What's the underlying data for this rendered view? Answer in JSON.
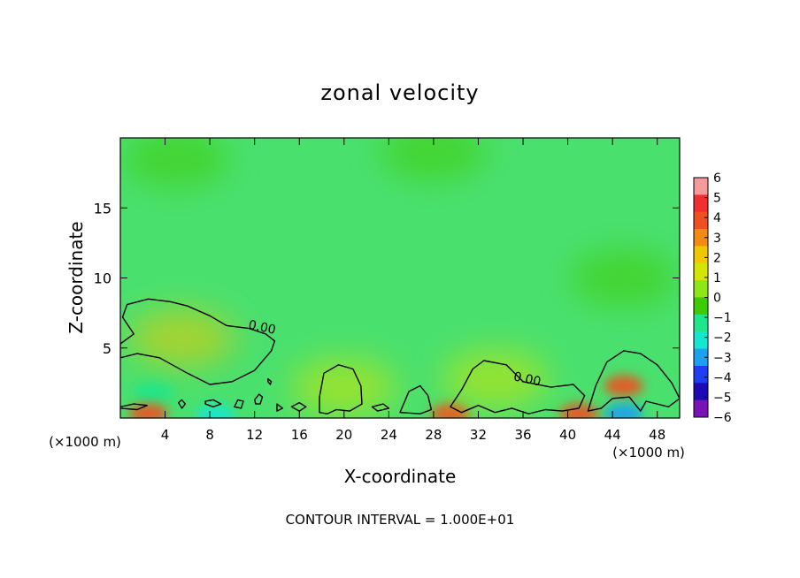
{
  "chart_data": {
    "type": "heatmap",
    "title": "zonal velocity",
    "xlabel": "X-coordinate",
    "ylabel": "Z-coordinate",
    "x_unit_left": "(×1000 m)",
    "x_unit_right": "(×1000 m)",
    "xlim": [
      0,
      50
    ],
    "ylim": [
      0,
      20
    ],
    "x_ticks": [
      4,
      8,
      12,
      16,
      20,
      24,
      28,
      32,
      36,
      40,
      44,
      48
    ],
    "y_ticks": [
      5,
      10,
      15
    ],
    "contour_labels": [
      {
        "text": "0.00",
        "x": 12.6,
        "y": 6.2
      },
      {
        "text": "0.00",
        "x": 36.3,
        "y": 2.5
      }
    ],
    "colorbar": {
      "ticks": [
        6,
        5,
        4,
        3,
        2,
        1,
        0,
        -1,
        -2,
        -3,
        -4,
        -5,
        -6
      ],
      "labels": [
        "6",
        "5",
        "4",
        "3",
        "2",
        "1",
        "0",
        "−1",
        "−2",
        "−3",
        "−4",
        "−5",
        "−6"
      ],
      "colors": [
        "#f59a9a",
        "#f03030",
        "#f05020",
        "#f08c14",
        "#f0c800",
        "#d4e600",
        "#90e614",
        "#3ccc00",
        "#1ee68c",
        "#14e6d2",
        "#1ea0f0",
        "#1e3cf0",
        "#1e0ab4",
        "#7814b4"
      ]
    },
    "background_color": "#4ae06e",
    "features": [
      {
        "x": 3.0,
        "y": 1.9,
        "value": -2.5
      },
      {
        "x": 8.5,
        "y": 0.2,
        "value": -3.5
      },
      {
        "x": 45,
        "y": 2.3,
        "value": 3.5
      },
      {
        "x": 45,
        "y": 0.3,
        "value": -4.5
      },
      {
        "x": 2.5,
        "y": 0.3,
        "value": 4.0
      },
      {
        "x": 29.5,
        "y": 0.3,
        "value": 4.0
      },
      {
        "x": 41,
        "y": 0.3,
        "value": 3.5
      },
      {
        "x": 5.5,
        "y": 5.7,
        "value": 1.2
      },
      {
        "x": 33.5,
        "y": 2.8,
        "value": 1.0
      },
      {
        "x": 20,
        "y": 2.2,
        "value": 1.0
      },
      {
        "x": 45,
        "y": 10.0,
        "value": -1.2
      },
      {
        "x": 28,
        "y": 19.0,
        "value": -1.0
      },
      {
        "x": 5,
        "y": 18.5,
        "value": -1.0
      }
    ],
    "contours_zero": [
      [
        [
          0.0,
          4.3
        ],
        [
          1.5,
          4.6
        ],
        [
          3.5,
          4.3
        ],
        [
          6.0,
          3.2
        ],
        [
          8.0,
          2.4
        ],
        [
          10.0,
          2.6
        ],
        [
          12.0,
          3.4
        ],
        [
          13.5,
          4.8
        ],
        [
          13.8,
          5.5
        ],
        [
          13.0,
          6.0
        ],
        [
          11.5,
          6.4
        ],
        [
          9.5,
          6.6
        ],
        [
          8.0,
          7.3
        ],
        [
          6.0,
          8.0
        ],
        [
          4.5,
          8.3
        ],
        [
          2.5,
          8.5
        ],
        [
          0.6,
          8.1
        ],
        [
          0.2,
          7.2
        ],
        [
          1.2,
          6.0
        ],
        [
          0.0,
          5.3
        ]
      ],
      [
        [
          17.8,
          0.4
        ],
        [
          17.8,
          1.5
        ],
        [
          18.2,
          3.2
        ],
        [
          19.5,
          3.8
        ],
        [
          20.8,
          3.5
        ],
        [
          21.5,
          2.3
        ],
        [
          21.6,
          1.0
        ],
        [
          20.5,
          0.5
        ],
        [
          19.3,
          0.6
        ],
        [
          18.5,
          0.3
        ]
      ],
      [
        [
          29.5,
          0.8
        ],
        [
          30.5,
          2.0
        ],
        [
          31.5,
          3.5
        ],
        [
          32.5,
          4.1
        ],
        [
          34.5,
          3.8
        ],
        [
          36.0,
          2.6
        ],
        [
          38.5,
          2.2
        ],
        [
          40.5,
          2.4
        ],
        [
          41.5,
          1.6
        ],
        [
          41.0,
          0.7
        ],
        [
          39.5,
          0.5
        ],
        [
          38.0,
          0.6
        ],
        [
          36.5,
          0.3
        ],
        [
          35.0,
          0.7
        ],
        [
          33.5,
          0.4
        ],
        [
          32.0,
          0.9
        ],
        [
          30.5,
          0.4
        ]
      ],
      [
        [
          41.8,
          0.5
        ],
        [
          42.5,
          2.3
        ],
        [
          43.5,
          4.0
        ],
        [
          45.0,
          4.8
        ],
        [
          46.5,
          4.6
        ],
        [
          48.0,
          3.8
        ],
        [
          49.3,
          2.5
        ],
        [
          50.0,
          1.4
        ],
        [
          49.0,
          0.8
        ],
        [
          47.0,
          1.2
        ],
        [
          46.5,
          0.5
        ],
        [
          45.5,
          1.5
        ],
        [
          44.0,
          1.4
        ],
        [
          43.0,
          0.7
        ]
      ],
      [
        [
          0.0,
          0.8
        ],
        [
          1.2,
          1.0
        ],
        [
          2.4,
          0.9
        ],
        [
          1.5,
          0.6
        ],
        [
          0.0,
          0.7
        ]
      ],
      [
        [
          25.0,
          0.4
        ],
        [
          25.8,
          1.9
        ],
        [
          26.8,
          2.3
        ],
        [
          27.5,
          1.6
        ],
        [
          27.8,
          0.6
        ],
        [
          26.8,
          0.3
        ]
      ],
      [
        [
          5.2,
          1.1
        ],
        [
          5.5,
          0.7
        ],
        [
          5.8,
          1.0
        ],
        [
          5.5,
          1.3
        ]
      ],
      [
        [
          7.6,
          1.2
        ],
        [
          8.3,
          1.3
        ],
        [
          9.0,
          1.0
        ],
        [
          8.3,
          0.8
        ],
        [
          7.6,
          1.0
        ]
      ],
      [
        [
          10.2,
          0.8
        ],
        [
          10.5,
          1.3
        ],
        [
          11.0,
          1.2
        ],
        [
          10.8,
          0.7
        ]
      ],
      [
        [
          12.0,
          1.3
        ],
        [
          12.4,
          1.7
        ],
        [
          12.7,
          1.5
        ],
        [
          12.5,
          1.0
        ],
        [
          12.1,
          1.0
        ]
      ],
      [
        [
          14.0,
          1.0
        ],
        [
          14.5,
          0.7
        ],
        [
          14.0,
          0.5
        ]
      ],
      [
        [
          15.3,
          0.8
        ],
        [
          16.0,
          1.1
        ],
        [
          16.6,
          0.8
        ],
        [
          16.0,
          0.5
        ]
      ],
      [
        [
          13.2,
          2.8
        ],
        [
          13.5,
          2.6
        ],
        [
          13.4,
          2.4
        ],
        [
          13.2,
          2.6
        ]
      ],
      [
        [
          22.5,
          0.8
        ],
        [
          23.5,
          1.0
        ],
        [
          24.0,
          0.7
        ],
        [
          23.0,
          0.5
        ]
      ]
    ],
    "footer": "CONTOUR INTERVAL = 1.000E+01"
  }
}
